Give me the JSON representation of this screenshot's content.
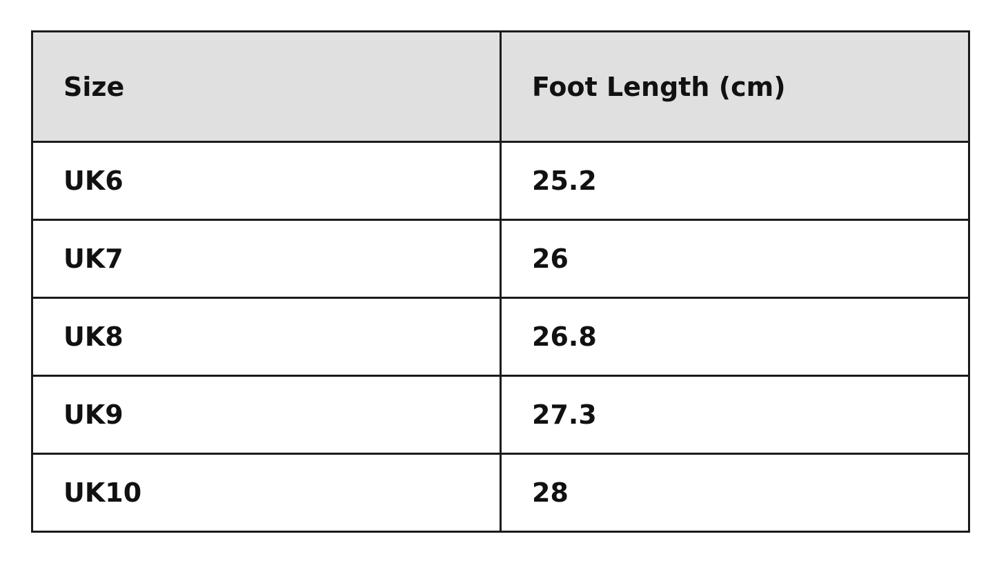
{
  "table": {
    "header": [
      "Size",
      "Foot Length (cm)"
    ],
    "rows": [
      [
        "UK6",
        25.2
      ],
      [
        "UK7",
        26
      ],
      [
        "UK8",
        26.8
      ],
      [
        "UK9",
        27.3
      ],
      [
        "UK10",
        28
      ]
    ]
  }
}
